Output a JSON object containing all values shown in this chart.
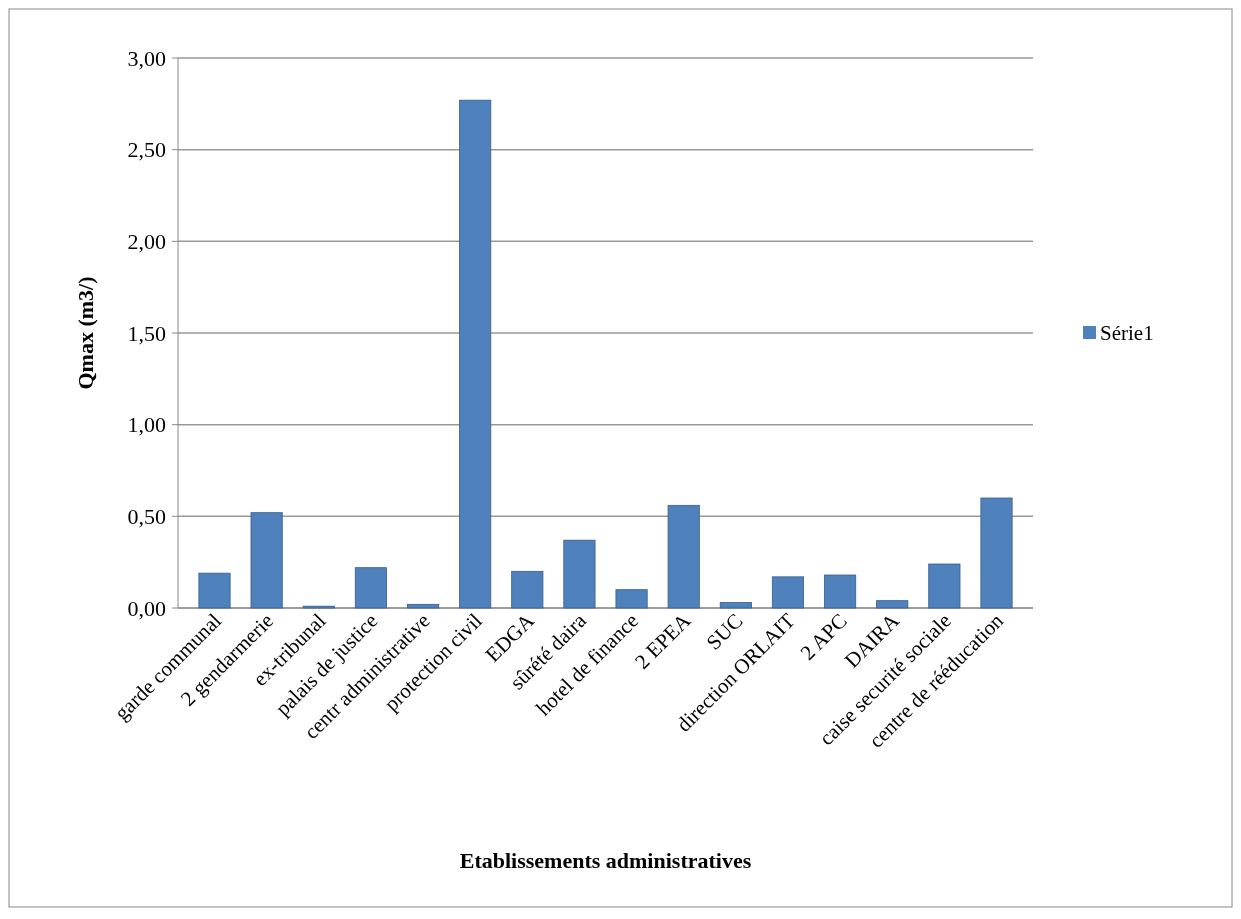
{
  "chart_data": {
    "type": "bar",
    "xlabel": "Etablissements administratives",
    "ylabel": "Qmax (m3/)",
    "categories": [
      "garde communal",
      "2 gendarmerie",
      "ex-tribunal",
      "palais de justice",
      "centr administrative",
      "protection civil",
      "EDGA",
      "sûrété daira",
      "hotel de finance",
      "2 EPEA",
      "SUC",
      "direction ORLAIT",
      "2 APC",
      "DAIRA",
      "caise securité sociale",
      "centre de rééducation"
    ],
    "series": [
      {
        "name": "Série1",
        "color": "#4f81bd",
        "values": [
          0.19,
          0.52,
          0.01,
          0.22,
          0.02,
          2.77,
          0.2,
          0.37,
          0.1,
          0.56,
          0.03,
          0.17,
          0.18,
          0.04,
          0.24,
          0.6
        ]
      }
    ],
    "ylim": [
      0,
      3
    ],
    "yticks": [
      {
        "value": 0,
        "label": "0,00"
      },
      {
        "value": 0.5,
        "label": "0,50"
      },
      {
        "value": 1,
        "label": "1,00"
      },
      {
        "value": 1.5,
        "label": "1,50"
      },
      {
        "value": 2,
        "label": "2,00"
      },
      {
        "value": 2.5,
        "label": "2,50"
      },
      {
        "value": 3,
        "label": "3,00"
      }
    ],
    "grid": true,
    "legend": "right"
  }
}
